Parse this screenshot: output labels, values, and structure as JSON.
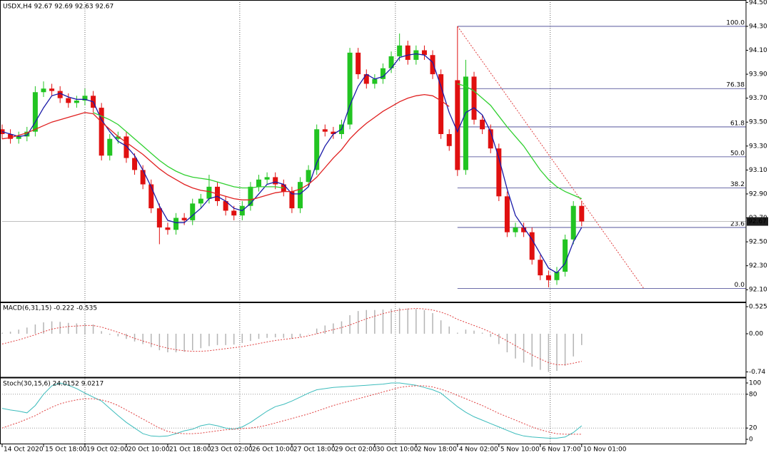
{
  "chart_data": [
    {
      "type": "candlestick",
      "title": "USDX,H4 92.67 92.69 92.63 92.67",
      "x": [
        0,
        2,
        4,
        6,
        8,
        10,
        12,
        14,
        16,
        18,
        20,
        22,
        24,
        26,
        28,
        30,
        32,
        34,
        36,
        38,
        40,
        42,
        44,
        46,
        48,
        50,
        52,
        54,
        56,
        58,
        60,
        62,
        64,
        66,
        68,
        70,
        72,
        74,
        76,
        78,
        80,
        82,
        84,
        86,
        88,
        90,
        92,
        94,
        96,
        98,
        100,
        102,
        104,
        106,
        108,
        110,
        112,
        114,
        116,
        118,
        120,
        122,
        124,
        126,
        128,
        130,
        132,
        134,
        136,
        138,
        140
      ],
      "open": [
        93.44,
        93.4,
        93.36,
        93.38,
        93.42,
        93.75,
        93.78,
        93.76,
        93.7,
        93.66,
        93.68,
        93.72,
        93.62,
        93.22,
        93.36,
        93.38,
        93.2,
        93.1,
        92.98,
        92.78,
        92.62,
        92.6,
        92.7,
        92.68,
        92.82,
        92.86,
        92.96,
        92.84,
        92.76,
        92.72,
        92.8,
        92.96,
        93.02,
        93.04,
        92.98,
        92.92,
        92.78,
        93.0,
        93.1,
        93.44,
        93.42,
        93.4,
        93.48,
        94.08,
        93.9,
        93.82,
        93.86,
        93.95,
        94.05,
        94.14,
        94.02,
        94.1,
        94.06,
        93.9,
        93.4,
        93.85,
        93.1,
        93.88,
        93.52,
        93.44,
        93.28,
        92.88,
        92.58,
        92.62,
        92.58,
        92.35,
        92.22,
        92.18,
        92.25,
        92.52,
        92.8
      ],
      "high": [
        93.48,
        93.44,
        93.42,
        93.46,
        93.8,
        93.84,
        93.82,
        93.8,
        93.74,
        93.72,
        93.78,
        93.76,
        93.66,
        93.4,
        93.42,
        93.42,
        93.24,
        93.14,
        93.02,
        92.82,
        92.66,
        92.74,
        92.74,
        92.86,
        92.9,
        93.06,
        93.0,
        92.88,
        92.8,
        92.84,
        93.0,
        93.06,
        93.08,
        93.08,
        93.02,
        92.96,
        93.04,
        93.14,
        93.48,
        93.48,
        93.46,
        93.52,
        94.12,
        94.12,
        93.94,
        93.9,
        93.99,
        94.09,
        94.24,
        94.18,
        94.14,
        94.14,
        94.1,
        93.94,
        93.44,
        94.3,
        94.02,
        93.92,
        93.56,
        93.48,
        93.32,
        92.92,
        92.66,
        92.66,
        92.62,
        92.39,
        92.26,
        92.29,
        92.56,
        92.84,
        92.84
      ],
      "low": [
        93.36,
        93.32,
        93.32,
        93.34,
        93.38,
        93.71,
        93.72,
        93.66,
        93.62,
        93.62,
        93.64,
        93.58,
        93.18,
        93.18,
        93.32,
        93.16,
        93.06,
        92.94,
        92.74,
        92.48,
        92.56,
        92.56,
        92.64,
        92.64,
        92.78,
        92.82,
        92.8,
        92.72,
        92.68,
        92.68,
        92.76,
        92.92,
        92.98,
        92.94,
        92.88,
        92.74,
        92.74,
        92.96,
        93.06,
        93.38,
        93.36,
        93.36,
        93.44,
        93.86,
        93.78,
        93.78,
        93.82,
        93.91,
        94.01,
        93.98,
        93.98,
        94.02,
        93.86,
        93.36,
        93.26,
        93.05,
        93.06,
        93.48,
        93.4,
        93.24,
        92.84,
        92.54,
        92.54,
        92.54,
        92.31,
        92.18,
        92.12,
        92.14,
        92.21,
        92.48,
        92.63
      ],
      "close": [
        93.4,
        93.36,
        93.38,
        93.42,
        93.75,
        93.78,
        93.76,
        93.7,
        93.66,
        93.68,
        93.72,
        93.62,
        93.22,
        93.36,
        93.38,
        93.2,
        93.1,
        92.98,
        92.78,
        92.62,
        92.6,
        92.7,
        92.68,
        92.82,
        92.86,
        92.96,
        92.84,
        92.76,
        92.72,
        92.8,
        92.96,
        93.02,
        93.04,
        92.98,
        92.92,
        92.78,
        93.0,
        93.1,
        93.44,
        93.42,
        93.4,
        93.48,
        94.08,
        93.9,
        93.82,
        93.86,
        93.95,
        94.05,
        94.14,
        94.02,
        94.1,
        94.06,
        93.9,
        93.4,
        93.3,
        93.1,
        93.88,
        93.52,
        93.44,
        93.28,
        92.88,
        92.58,
        92.62,
        92.58,
        92.35,
        92.22,
        92.18,
        92.25,
        92.52,
        92.8,
        92.67
      ],
      "up_color": "#22c422",
      "down_color": "#e01010",
      "lines": [
        {
          "color": "#1a1aa8",
          "values": [
            93.42,
            93.4,
            93.38,
            93.39,
            93.5,
            93.62,
            93.72,
            93.74,
            93.71,
            93.69,
            93.69,
            93.67,
            93.52,
            93.42,
            93.34,
            93.3,
            93.22,
            93.1,
            92.96,
            92.8,
            92.68,
            92.66,
            92.66,
            92.72,
            92.78,
            92.86,
            92.88,
            92.84,
            92.78,
            92.76,
            92.82,
            92.9,
            92.98,
            93.0,
            92.98,
            92.9,
            92.9,
            92.96,
            93.16,
            93.3,
            93.4,
            93.44,
            93.64,
            93.8,
            93.9,
            93.86,
            93.88,
            93.95,
            94.04,
            94.06,
            94.07,
            94.06,
            94.0,
            93.8,
            93.58,
            93.42,
            93.58,
            93.62,
            93.56,
            93.42,
            93.2,
            92.94,
            92.72,
            92.62,
            92.52,
            92.4,
            92.28,
            92.24,
            92.32,
            92.5,
            92.62
          ]
        },
        {
          "color": "#e02020",
          "values": [
            93.36,
            93.37,
            93.39,
            93.41,
            93.44,
            93.47,
            93.5,
            93.52,
            93.54,
            93.56,
            93.58,
            93.57,
            93.5,
            93.44,
            93.38,
            93.33,
            93.28,
            93.23,
            93.17,
            93.11,
            93.06,
            93.02,
            92.98,
            92.95,
            92.93,
            92.92,
            92.9,
            92.88,
            92.86,
            92.85,
            92.85,
            92.87,
            92.89,
            92.91,
            92.92,
            92.92,
            92.94,
            92.98,
            93.04,
            93.12,
            93.2,
            93.27,
            93.36,
            93.43,
            93.49,
            93.54,
            93.59,
            93.63,
            93.67,
            93.7,
            93.72,
            93.73,
            93.72,
            93.68,
            93.63,
            null,
            null,
            null,
            null,
            null,
            null,
            null,
            null,
            null,
            null,
            null,
            null,
            null,
            null,
            null,
            null
          ]
        },
        {
          "color": "#30d030",
          "values": [
            null,
            null,
            null,
            null,
            null,
            null,
            null,
            null,
            null,
            null,
            null,
            93.58,
            93.55,
            93.52,
            93.48,
            93.42,
            93.36,
            93.3,
            93.24,
            93.18,
            93.13,
            93.09,
            93.06,
            93.04,
            93.03,
            93.02,
            93.0,
            92.98,
            92.96,
            92.95,
            92.95,
            92.96,
            92.96,
            92.96,
            92.95,
            null,
            null,
            null,
            null,
            null,
            null,
            null,
            null,
            null,
            null,
            null,
            null,
            null,
            null,
            null,
            null,
            null,
            null,
            null,
            null,
            93.82,
            93.8,
            93.76,
            93.7,
            93.64,
            93.55,
            93.46,
            93.38,
            93.3,
            93.2,
            93.1,
            93.02,
            92.96,
            92.92,
            92.89,
            92.86
          ]
        }
      ],
      "last_price": 92.67,
      "fib_color": "#3c3c8c",
      "fib_start_x": 110,
      "fib_levels": [
        {
          "label": "100.0",
          "price": 94.3
        },
        {
          "label": "76.38",
          "price": 93.78
        },
        {
          "label": "61.8",
          "price": 93.46
        },
        {
          "label": "50.0",
          "price": 93.21
        },
        {
          "label": "38.2",
          "price": 92.95
        },
        {
          "label": "23.6",
          "price": 92.62
        },
        {
          "label": "0.0",
          "price": 92.11
        }
      ],
      "trendline": {
        "color": "#e04040",
        "x": [
          110,
          155
        ],
        "y": [
          94.3,
          92.11
        ]
      },
      "separators": [
        20,
        57.4,
        95,
        132.4
      ],
      "xlim": [
        0,
        179.7
      ],
      "xticks": [
        {
          "value": 0,
          "label": "14 Oct 2020"
        },
        {
          "value": 10,
          "label": "15 Oct 18:00"
        },
        {
          "value": 20,
          "label": "19 Oct 02:00"
        },
        {
          "value": 30,
          "label": "20 Oct 10:00"
        },
        {
          "value": 40,
          "label": "21 Oct 18:00"
        },
        {
          "value": 50,
          "label": "23 Oct 02:00"
        },
        {
          "value": 60,
          "label": "26 Oct 10:00"
        },
        {
          "value": 70,
          "label": "27 Oct 18:00"
        },
        {
          "value": 80,
          "label": "29 Oct 02:00"
        },
        {
          "value": 90,
          "label": "30 Oct 10:00"
        },
        {
          "value": 100,
          "label": "2 Nov 18:00"
        },
        {
          "value": 110,
          "label": "4 Nov 02:00"
        },
        {
          "value": 120,
          "label": "5 Nov 10:00"
        },
        {
          "value": 130,
          "label": "6 Nov 17:00"
        },
        {
          "value": 140,
          "label": "10 Nov 01:00"
        }
      ],
      "ylim": [
        92.0,
        94.52
      ],
      "yticks": [
        {
          "value": 92.1,
          "label": "92.10"
        },
        {
          "value": 92.3,
          "label": "92.30"
        },
        {
          "value": 92.5,
          "label": "92.50"
        },
        {
          "value": 92.7,
          "label": "92.70"
        },
        {
          "value": 92.9,
          "label": "92.90"
        },
        {
          "value": 93.1,
          "label": "93.10"
        },
        {
          "value": 93.3,
          "label": "93.30"
        },
        {
          "value": 93.5,
          "label": "93.50"
        },
        {
          "value": 93.7,
          "label": "93.70"
        },
        {
          "value": 93.9,
          "label": "93.90"
        },
        {
          "value": 94.1,
          "label": "94.10"
        },
        {
          "value": 94.3,
          "label": "94.30"
        },
        {
          "value": 94.5,
          "label": "94.50"
        }
      ]
    },
    {
      "type": "macd",
      "title": "MACD(6,31,15) -0.222 -0.535",
      "histogram_color": "#b4b4b4",
      "signal_color": "#e04040",
      "histogram": [
        0.02,
        0.04,
        0.08,
        0.12,
        0.18,
        0.22,
        0.24,
        0.23,
        0.21,
        0.2,
        0.2,
        0.18,
        0.05,
        -0.02,
        -0.05,
        -0.1,
        -0.15,
        -0.2,
        -0.26,
        -0.32,
        -0.36,
        -0.36,
        -0.35,
        -0.32,
        -0.28,
        -0.24,
        -0.22,
        -0.22,
        -0.21,
        -0.18,
        -0.14,
        -0.1,
        -0.08,
        -0.07,
        -0.08,
        -0.1,
        -0.06,
        0.0,
        0.1,
        0.16,
        0.2,
        0.24,
        0.36,
        0.44,
        0.46,
        0.46,
        0.47,
        0.48,
        0.5,
        0.49,
        0.48,
        0.46,
        0.4,
        0.26,
        0.14,
        0.02,
        0.08,
        0.06,
        0.02,
        -0.06,
        -0.2,
        -0.36,
        -0.48,
        -0.56,
        -0.64,
        -0.7,
        -0.74,
        -0.72,
        -0.62,
        -0.44,
        -0.22
      ],
      "signal": [
        -0.2,
        -0.16,
        -0.12,
        -0.07,
        -0.02,
        0.04,
        0.09,
        0.12,
        0.14,
        0.15,
        0.16,
        0.16,
        0.13,
        0.08,
        0.03,
        -0.03,
        -0.09,
        -0.14,
        -0.19,
        -0.24,
        -0.28,
        -0.31,
        -0.33,
        -0.34,
        -0.34,
        -0.33,
        -0.31,
        -0.29,
        -0.27,
        -0.25,
        -0.22,
        -0.19,
        -0.16,
        -0.13,
        -0.11,
        -0.09,
        -0.07,
        -0.04,
        0.0,
        0.04,
        0.08,
        0.12,
        0.17,
        0.23,
        0.29,
        0.34,
        0.39,
        0.43,
        0.46,
        0.48,
        0.49,
        0.48,
        0.46,
        0.42,
        0.36,
        0.28,
        0.22,
        0.16,
        0.1,
        0.03,
        -0.05,
        -0.14,
        -0.23,
        -0.32,
        -0.41,
        -0.49,
        -0.56,
        -0.6,
        -0.6,
        -0.57,
        -0.535
      ],
      "ylim": [
        -0.83,
        0.594
      ],
      "yticks": [
        0.525,
        {
          "value": 0,
          "label": "0.00"
        },
        -0.74
      ]
    },
    {
      "type": "stochastic",
      "title": "Stoch(30,15,6) 24.0152 9.0217",
      "main_color": "#3cbcbc",
      "signal_color": "#e04040",
      "main": [
        55,
        52,
        50,
        47,
        60,
        80,
        95,
        100,
        96,
        90,
        82,
        75,
        68,
        55,
        42,
        30,
        20,
        10,
        6,
        5,
        6,
        10,
        15,
        18,
        24,
        27,
        24,
        20,
        18,
        22,
        30,
        40,
        50,
        58,
        62,
        68,
        75,
        82,
        88,
        90,
        92,
        93,
        94,
        95,
        96,
        97,
        98,
        100,
        100,
        98,
        96,
        92,
        88,
        82,
        70,
        58,
        48,
        40,
        34,
        28,
        22,
        16,
        10,
        6,
        4,
        3,
        2,
        2,
        4,
        12,
        24.0152
      ],
      "signal": [
        20,
        25,
        30,
        36,
        42,
        50,
        57,
        63,
        67,
        70,
        72,
        72,
        70,
        66,
        60,
        52,
        44,
        36,
        28,
        20,
        14,
        11,
        10,
        10,
        11,
        13,
        15,
        17,
        18,
        19,
        20,
        22,
        25,
        29,
        33,
        37,
        41,
        45,
        50,
        55,
        60,
        64,
        68,
        72,
        76,
        80,
        84,
        88,
        92,
        94,
        95,
        95,
        93,
        89,
        84,
        78,
        72,
        66,
        60,
        53,
        46,
        40,
        34,
        28,
        22,
        17,
        13,
        10,
        9,
        9,
        9.0217
      ],
      "level_lines": [
        20,
        80
      ],
      "ylim": [
        -7.6,
        107.6
      ],
      "yticks": [
        0,
        20,
        80,
        100
      ]
    }
  ]
}
